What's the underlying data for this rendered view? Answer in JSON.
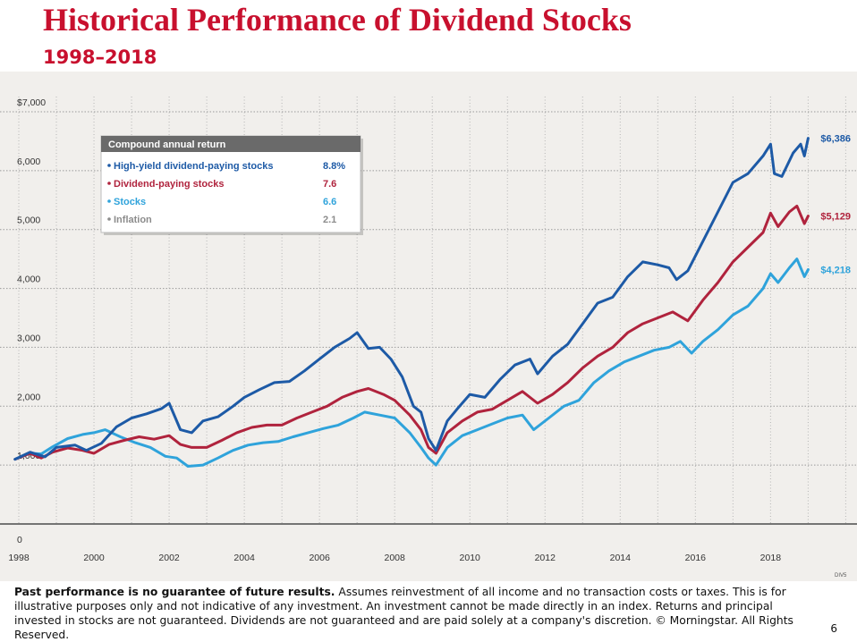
{
  "slide": {
    "title": "Historical Performance of Dividend Stocks",
    "subtitle": "1998–2018",
    "page_number": "6",
    "chart_code": "DIV5"
  },
  "disclaimer": {
    "bold": "Past performance is no guarantee of future results.",
    "text": "Assumes reinvestment of all income and no transaction costs or taxes. This is for illustrative purposes only and not indicative of any investment. An investment cannot be made directly in an index. Returns and principal invested in stocks are not guaranteed. Dividends are not guaranteed and are paid solely at a company's discretion. © Morningstar. All Rights Reserved."
  },
  "colors": {
    "title": "#c8102e",
    "background": "#f1efec",
    "high_yield": "#1d5aa6",
    "dividend": "#b0233d",
    "stocks": "#2fa3db",
    "inflation": "#8c8c8c"
  },
  "legend_box": {
    "title": "Compound annual return",
    "items": [
      {
        "label": "High-yield dividend-paying stocks",
        "value": "8.8%",
        "series": "high_yield"
      },
      {
        "label": "Dividend-paying stocks",
        "value": "7.6",
        "series": "dividend"
      },
      {
        "label": "Stocks",
        "value": "6.6",
        "series": "stocks"
      },
      {
        "label": "Inflation",
        "value": "2.1",
        "series": "inflation"
      }
    ]
  },
  "chart_data": {
    "type": "line",
    "title": "",
    "xlabel": "",
    "ylabel": "",
    "x_ticks": [
      "1998",
      "2000",
      "2002",
      "2004",
      "2006",
      "2008",
      "2010",
      "2012",
      "2014",
      "2016",
      "2018"
    ],
    "y_ticks": [
      "0",
      "1,000",
      "2,000",
      "3,000",
      "4,000",
      "5,000",
      "6,000",
      "$7,000"
    ],
    "xlim": [
      1997.5,
      2020.3
    ],
    "ylim": [
      0,
      7000
    ],
    "grid": true,
    "legend_position": "top-left",
    "series": [
      {
        "key": "high_yield",
        "end_label": "$6,386",
        "points": [
          [
            1997.9,
            1100
          ],
          [
            1998.3,
            1220
          ],
          [
            1998.7,
            1140
          ],
          [
            1999.0,
            1300
          ],
          [
            1999.5,
            1340
          ],
          [
            1999.8,
            1250
          ],
          [
            2000.2,
            1370
          ],
          [
            2000.6,
            1650
          ],
          [
            2001.0,
            1800
          ],
          [
            2001.4,
            1870
          ],
          [
            2001.8,
            1960
          ],
          [
            2002.0,
            2050
          ],
          [
            2002.3,
            1600
          ],
          [
            2002.6,
            1550
          ],
          [
            2002.9,
            1750
          ],
          [
            2003.3,
            1820
          ],
          [
            2003.7,
            2000
          ],
          [
            2004.0,
            2150
          ],
          [
            2004.4,
            2280
          ],
          [
            2004.8,
            2400
          ],
          [
            2005.2,
            2420
          ],
          [
            2005.6,
            2600
          ],
          [
            2006.0,
            2800
          ],
          [
            2006.4,
            3000
          ],
          [
            2006.8,
            3150
          ],
          [
            2007.0,
            3250
          ],
          [
            2007.3,
            2980
          ],
          [
            2007.6,
            3000
          ],
          [
            2007.9,
            2800
          ],
          [
            2008.2,
            2500
          ],
          [
            2008.5,
            2000
          ],
          [
            2008.7,
            1900
          ],
          [
            2008.9,
            1450
          ],
          [
            2009.1,
            1250
          ],
          [
            2009.4,
            1750
          ],
          [
            2009.7,
            1980
          ],
          [
            2010.0,
            2200
          ],
          [
            2010.4,
            2150
          ],
          [
            2010.8,
            2450
          ],
          [
            2011.2,
            2700
          ],
          [
            2011.6,
            2800
          ],
          [
            2011.8,
            2550
          ],
          [
            2012.2,
            2850
          ],
          [
            2012.6,
            3050
          ],
          [
            2013.0,
            3400
          ],
          [
            2013.4,
            3750
          ],
          [
            2013.8,
            3850
          ],
          [
            2014.2,
            4200
          ],
          [
            2014.6,
            4450
          ],
          [
            2015.0,
            4400
          ],
          [
            2015.3,
            4350
          ],
          [
            2015.5,
            4150
          ],
          [
            2015.8,
            4300
          ],
          [
            2016.2,
            4800
          ],
          [
            2016.6,
            5300
          ],
          [
            2017.0,
            5800
          ],
          [
            2017.4,
            5950
          ],
          [
            2017.8,
            6250
          ],
          [
            2018.0,
            6450
          ],
          [
            2018.1,
            5950
          ],
          [
            2018.3,
            5900
          ],
          [
            2018.6,
            6300
          ],
          [
            2018.8,
            6450
          ],
          [
            2018.9,
            6250
          ],
          [
            2019.0,
            6550
          ]
        ]
      },
      {
        "key": "dividend",
        "end_label": "$5,129",
        "points": [
          [
            1997.9,
            1100
          ],
          [
            1998.3,
            1200
          ],
          [
            1998.6,
            1120
          ],
          [
            1998.9,
            1220
          ],
          [
            1999.3,
            1290
          ],
          [
            1999.7,
            1250
          ],
          [
            2000.0,
            1200
          ],
          [
            2000.4,
            1350
          ],
          [
            2000.8,
            1420
          ],
          [
            2001.2,
            1480
          ],
          [
            2001.6,
            1440
          ],
          [
            2002.0,
            1500
          ],
          [
            2002.3,
            1350
          ],
          [
            2002.6,
            1300
          ],
          [
            2003.0,
            1300
          ],
          [
            2003.4,
            1420
          ],
          [
            2003.8,
            1550
          ],
          [
            2004.2,
            1640
          ],
          [
            2004.6,
            1680
          ],
          [
            2005.0,
            1680
          ],
          [
            2005.4,
            1800
          ],
          [
            2005.8,
            1900
          ],
          [
            2006.2,
            2000
          ],
          [
            2006.6,
            2150
          ],
          [
            2007.0,
            2250
          ],
          [
            2007.3,
            2300
          ],
          [
            2007.7,
            2200
          ],
          [
            2008.0,
            2100
          ],
          [
            2008.4,
            1850
          ],
          [
            2008.7,
            1600
          ],
          [
            2008.9,
            1300
          ],
          [
            2009.1,
            1200
          ],
          [
            2009.4,
            1550
          ],
          [
            2009.8,
            1750
          ],
          [
            2010.2,
            1900
          ],
          [
            2010.6,
            1950
          ],
          [
            2011.0,
            2100
          ],
          [
            2011.4,
            2250
          ],
          [
            2011.8,
            2050
          ],
          [
            2012.2,
            2200
          ],
          [
            2012.6,
            2400
          ],
          [
            2013.0,
            2650
          ],
          [
            2013.4,
            2850
          ],
          [
            2013.8,
            3000
          ],
          [
            2014.2,
            3250
          ],
          [
            2014.6,
            3400
          ],
          [
            2015.0,
            3500
          ],
          [
            2015.4,
            3600
          ],
          [
            2015.8,
            3450
          ],
          [
            2016.2,
            3800
          ],
          [
            2016.6,
            4100
          ],
          [
            2017.0,
            4450
          ],
          [
            2017.4,
            4700
          ],
          [
            2017.8,
            4950
          ],
          [
            2018.0,
            5280
          ],
          [
            2018.2,
            5050
          ],
          [
            2018.5,
            5300
          ],
          [
            2018.7,
            5400
          ],
          [
            2018.9,
            5100
          ],
          [
            2019.0,
            5230
          ]
        ]
      },
      {
        "key": "stocks",
        "end_label": "$4,218",
        "points": [
          [
            1997.9,
            1100
          ],
          [
            1998.3,
            1200
          ],
          [
            1998.6,
            1190
          ],
          [
            1998.9,
            1310
          ],
          [
            1999.3,
            1450
          ],
          [
            1999.7,
            1520
          ],
          [
            2000.0,
            1550
          ],
          [
            2000.3,
            1600
          ],
          [
            2000.7,
            1480
          ],
          [
            2001.1,
            1380
          ],
          [
            2001.5,
            1300
          ],
          [
            2001.9,
            1150
          ],
          [
            2002.2,
            1120
          ],
          [
            2002.5,
            980
          ],
          [
            2002.9,
            1000
          ],
          [
            2003.3,
            1120
          ],
          [
            2003.7,
            1250
          ],
          [
            2004.1,
            1340
          ],
          [
            2004.5,
            1380
          ],
          [
            2004.9,
            1400
          ],
          [
            2005.3,
            1480
          ],
          [
            2005.7,
            1550
          ],
          [
            2006.1,
            1620
          ],
          [
            2006.5,
            1680
          ],
          [
            2006.9,
            1800
          ],
          [
            2007.2,
            1900
          ],
          [
            2007.6,
            1850
          ],
          [
            2008.0,
            1800
          ],
          [
            2008.4,
            1550
          ],
          [
            2008.7,
            1300
          ],
          [
            2008.9,
            1120
          ],
          [
            2009.1,
            1000
          ],
          [
            2009.4,
            1300
          ],
          [
            2009.8,
            1500
          ],
          [
            2010.2,
            1600
          ],
          [
            2010.6,
            1700
          ],
          [
            2011.0,
            1800
          ],
          [
            2011.4,
            1850
          ],
          [
            2011.7,
            1600
          ],
          [
            2012.1,
            1800
          ],
          [
            2012.5,
            2000
          ],
          [
            2012.9,
            2100
          ],
          [
            2013.3,
            2400
          ],
          [
            2013.7,
            2600
          ],
          [
            2014.1,
            2750
          ],
          [
            2014.5,
            2850
          ],
          [
            2014.9,
            2950
          ],
          [
            2015.3,
            3000
          ],
          [
            2015.6,
            3100
          ],
          [
            2015.9,
            2900
          ],
          [
            2016.2,
            3100
          ],
          [
            2016.6,
            3300
          ],
          [
            2017.0,
            3550
          ],
          [
            2017.4,
            3700
          ],
          [
            2017.8,
            4000
          ],
          [
            2018.0,
            4250
          ],
          [
            2018.2,
            4100
          ],
          [
            2018.5,
            4350
          ],
          [
            2018.7,
            4500
          ],
          [
            2018.9,
            4200
          ],
          [
            2019.0,
            4320
          ]
        ]
      }
    ]
  }
}
